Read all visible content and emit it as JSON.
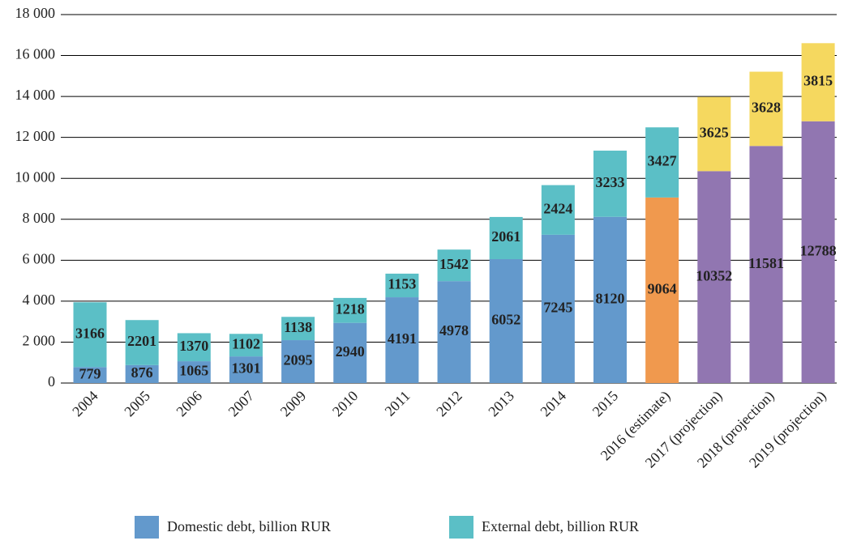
{
  "chart_data": {
    "type": "stacked-bar",
    "categories": [
      "2004",
      "2005",
      "2006",
      "2007",
      "2009",
      "2010",
      "2011",
      "2012",
      "2013",
      "2014",
      "2015",
      "2016 (estimate)",
      "2017 (projection)",
      "2018 (projection)",
      "2019 (projection)"
    ],
    "series": [
      {
        "name": "Domestic debt, billion RUR",
        "color": "#6399cc",
        "colors": [
          "#6399cc",
          "#6399cc",
          "#6399cc",
          "#6399cc",
          "#6399cc",
          "#6399cc",
          "#6399cc",
          "#6399cc",
          "#6399cc",
          "#6399cc",
          "#6399cc",
          "#f0994e",
          "#9176b1",
          "#9176b1",
          "#9176b1"
        ],
        "values": [
          779,
          876,
          1065,
          1301,
          2095,
          2940,
          4191,
          4978,
          6052,
          7245,
          8120,
          9064,
          10352,
          11581,
          12788
        ]
      },
      {
        "name": "External debt, billion RUR",
        "color": "#5bbfc6",
        "colors": [
          "#5bbfc6",
          "#5bbfc6",
          "#5bbfc6",
          "#5bbfc6",
          "#5bbfc6",
          "#5bbfc6",
          "#5bbfc6",
          "#5bbfc6",
          "#5bbfc6",
          "#5bbfc6",
          "#5bbfc6",
          "#5bbfc6",
          "#f5d85f",
          "#f5d85f",
          "#f5d85f"
        ],
        "values": [
          3166,
          2201,
          1370,
          1102,
          1138,
          1218,
          1153,
          1542,
          2061,
          2424,
          3233,
          3427,
          3625,
          3628,
          3815
        ]
      }
    ],
    "ylim": [
      0,
      18000
    ],
    "yticks": [
      0,
      {
        "value": 2000,
        "label": "2 000"
      },
      {
        "value": 4000,
        "label": "4 000"
      },
      {
        "value": 6000,
        "label": "6 000"
      },
      {
        "value": 8000,
        "label": "8 000"
      },
      {
        "value": 10000,
        "label": "10 000"
      },
      {
        "value": 12000,
        "label": "12 000"
      },
      {
        "value": 14000,
        "label": "14 000"
      },
      {
        "value": 16000,
        "label": "16 000"
      },
      {
        "value": 18000,
        "label": "18 000"
      }
    ],
    "grid": true
  }
}
